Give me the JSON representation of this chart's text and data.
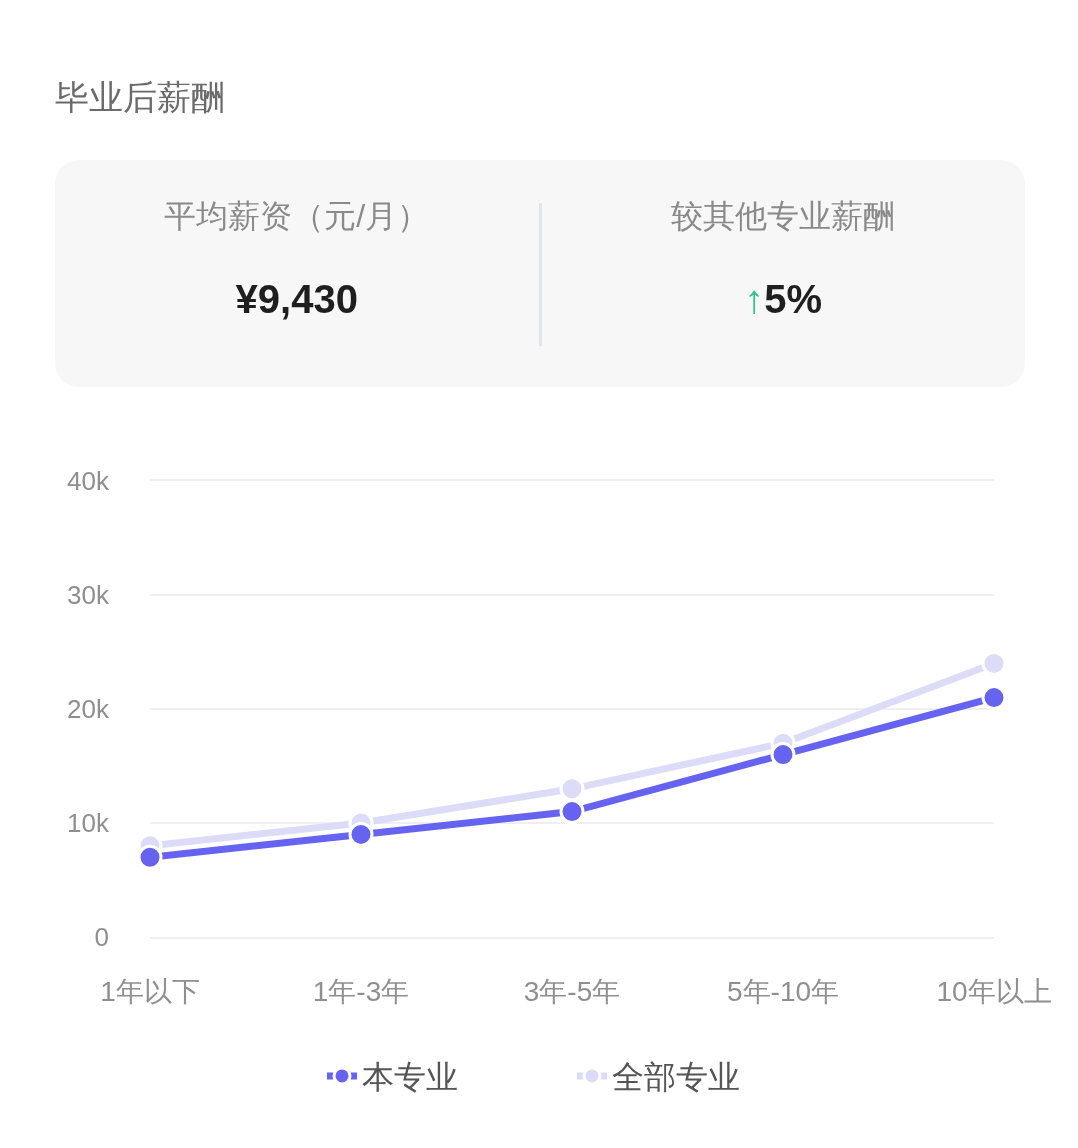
{
  "chart_data": [
    {
      "type": "other",
      "title": "毕业后薪酬",
      "annotations": [
        "平均薪资（元/月）",
        "¥9,430",
        "较其他专业薪酬",
        "↑5%"
      ]
    },
    {
      "type": "line",
      "categories": [
        "1年以下",
        "1年-3年",
        "3年-5年",
        "5年-10年",
        "10年以上"
      ],
      "series": [
        {
          "name": "本专业",
          "color": "#6563ef",
          "values": [
            7000,
            9000,
            11000,
            16000,
            21000
          ]
        },
        {
          "name": "全部专业",
          "color": "#dcdcf8",
          "values": [
            8000,
            10000,
            13000,
            17000,
            24000
          ]
        }
      ],
      "ylim": [
        0,
        40000
      ],
      "yticks": [
        0,
        {
          "value": 10000,
          "label": "10k"
        },
        {
          "value": 20000,
          "label": "20k"
        },
        {
          "value": 30000,
          "label": "30k"
        },
        {
          "value": 40000,
          "label": "40k"
        }
      ],
      "grid": "y",
      "legend": "bottom",
      "marker": "circle",
      "line_style": "solid"
    }
  ]
}
